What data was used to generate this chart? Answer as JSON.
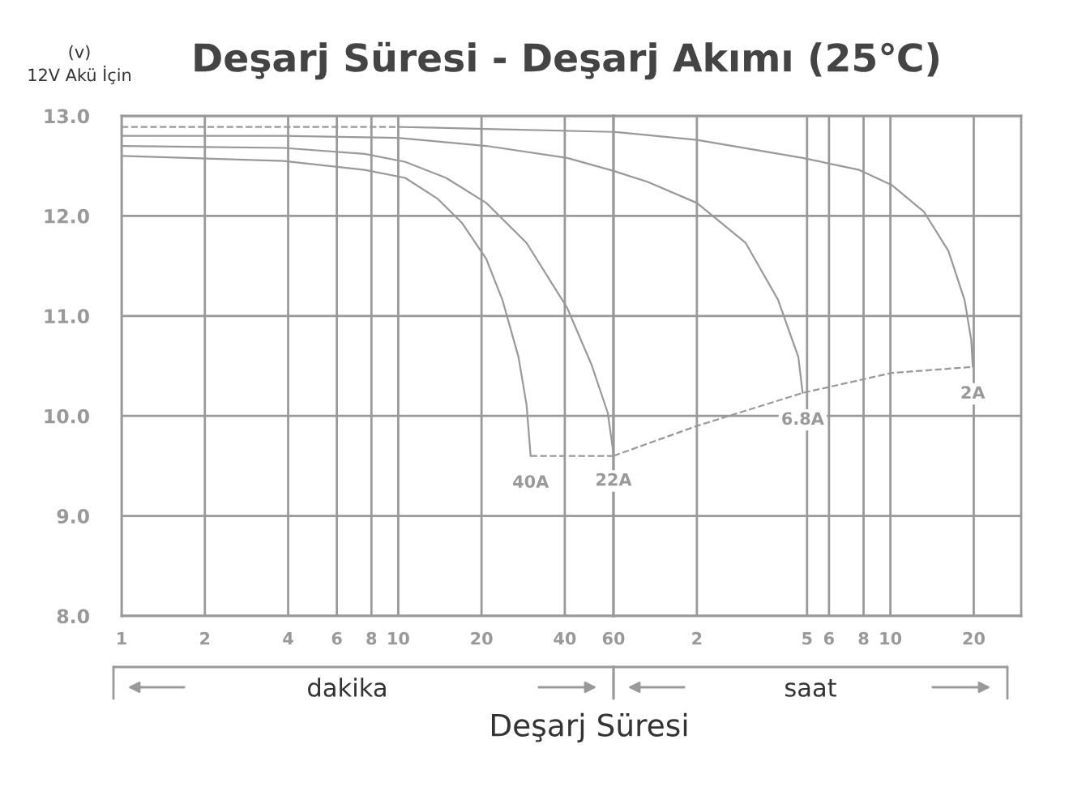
{
  "chart_data": [
    {
      "type": "line",
      "title": "Deşarj Süresi - Deşarj Akımı (25℃)",
      "xlabel": "Deşarj Süresi",
      "ylabel": "(v)\n12V Akü İçin",
      "annotations": [
        "dakika"
      ],
      "log": "x",
      "xlim": [
        1,
        60
      ],
      "ylim": [
        8,
        13
      ],
      "xticks": [
        1,
        2,
        4,
        6,
        8,
        10,
        20,
        40,
        60
      ],
      "yticks": [
        {
          "value": 8,
          "label": "8.0"
        },
        {
          "value": 9,
          "label": "9.0"
        },
        {
          "value": 10,
          "label": "10.0"
        },
        {
          "value": 11,
          "label": "11.0"
        },
        {
          "value": 12,
          "label": "12.0"
        },
        {
          "value": 13,
          "label": "13.0"
        }
      ],
      "grid": true,
      "legend": false,
      "marker": "none",
      "series": [
        {
          "color": "#999999",
          "line_style": "solid",
          "x": [
            10,
            20.8,
            60
          ],
          "values": [
            12.89,
            12.87,
            12.84
          ]
        },
        {
          "color": "#999999",
          "line_style": "solid",
          "x": [
            1,
            3.85,
            10,
            20.8,
            40.8,
            60
          ],
          "values": [
            12.8,
            12.8,
            12.78,
            12.7,
            12.58,
            12.45
          ]
        },
        {
          "name": "22A",
          "color": "#999999",
          "line_style": "solid",
          "x": [
            1,
            3.85,
            7.56,
            10.6,
            14.9,
            20.8,
            29.1,
            40.8,
            50,
            57.2,
            60
          ],
          "values": [
            12.7,
            12.68,
            12.62,
            12.54,
            12.38,
            12.13,
            11.73,
            11.08,
            10.51,
            10.03,
            9.62
          ]
        },
        {
          "name": "40A",
          "color": "#999999",
          "line_style": "solid",
          "x": [
            1,
            3.85,
            7.56,
            10.6,
            13.9,
            17.0,
            20.8,
            23.8,
            27.2,
            29.1,
            30.1
          ],
          "values": [
            12.6,
            12.55,
            12.46,
            12.38,
            12.17,
            11.93,
            11.57,
            11.16,
            10.59,
            10.11,
            9.6
          ]
        },
        {
          "color": "#999999",
          "line_style": "dashed",
          "x": [
            1,
            10
          ],
          "values": [
            12.89,
            12.89
          ]
        },
        {
          "color": "#999999",
          "line_style": "dashed",
          "x": [
            30.1,
            60
          ],
          "values": [
            9.6,
            9.6
          ]
        }
      ]
    },
    {
      "type": "line",
      "annotations": [
        "saat"
      ],
      "log": "x",
      "xlim": [
        1,
        29.67
      ],
      "ylim": [
        8,
        13
      ],
      "xticks": [
        2,
        5,
        6,
        8,
        10,
        20
      ],
      "yticks": [
        8,
        9,
        10,
        11,
        12,
        13
      ],
      "tick_labels": "x",
      "grid": true,
      "legend": false,
      "marker": "none",
      "series": [
        {
          "name": "2A",
          "color": "#999999",
          "line_style": "solid",
          "x": [
            1,
            2,
            4.82,
            7.72,
            10.1,
            13.23,
            16.2,
            18.53,
            19.58,
            19.83
          ],
          "values": [
            12.84,
            12.76,
            12.58,
            12.46,
            12.31,
            12.04,
            11.65,
            11.16,
            10.76,
            10.49
          ]
        },
        {
          "name": "6.8A",
          "color": "#999999",
          "line_style": "solid",
          "x": [
            1,
            1.33,
            2,
            3,
            3.93,
            4.65,
            4.82
          ],
          "values": [
            12.45,
            12.34,
            12.13,
            11.73,
            11.16,
            10.59,
            10.23
          ]
        },
        {
          "color": "#999999",
          "line_style": "dashed",
          "x": [
            1,
            2,
            4.82,
            10.1,
            19.83
          ],
          "values": [
            9.6,
            9.9,
            10.23,
            10.43,
            10.49
          ]
        }
      ]
    }
  ]
}
